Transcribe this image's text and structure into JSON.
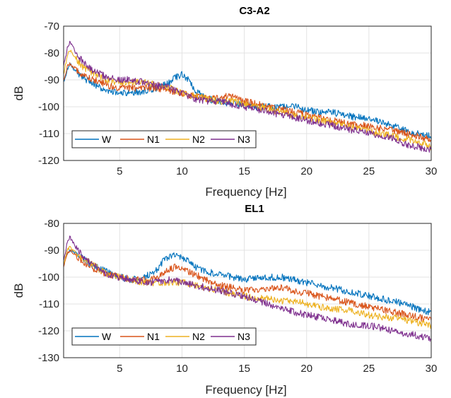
{
  "chart_data": [
    {
      "type": "line",
      "title": "C3-A2",
      "xlabel": "Frequency [Hz]",
      "ylabel": "dB",
      "xlim": [
        0.5,
        30
      ],
      "ylim": [
        -120,
        -70
      ],
      "xticks": [
        5,
        10,
        15,
        20,
        25,
        30
      ],
      "yticks": [
        -70,
        -80,
        -90,
        -100,
        -110,
        -120
      ],
      "grid": true,
      "legend": {
        "placement": "bottom-left",
        "orientation": "horizontal"
      },
      "series": [
        {
          "name": "W",
          "color": "#0072BD",
          "points": [
            [
              0.5,
              -91
            ],
            [
              0.8,
              -86
            ],
            [
              1,
              -84
            ],
            [
              1.5,
              -87
            ],
            [
              2,
              -89
            ],
            [
              3,
              -92
            ],
            [
              4,
              -94
            ],
            [
              5,
              -95
            ],
            [
              6,
              -95
            ],
            [
              7,
              -94
            ],
            [
              8,
              -93
            ],
            [
              8.5,
              -92
            ],
            [
              9,
              -91
            ],
            [
              9.5,
              -89
            ],
            [
              10,
              -88
            ],
            [
              10.5,
              -90
            ],
            [
              11,
              -94
            ],
            [
              12,
              -97
            ],
            [
              13,
              -98
            ],
            [
              14,
              -99
            ],
            [
              15,
              -99
            ],
            [
              16,
              -100
            ],
            [
              17,
              -100
            ],
            [
              18,
              -100
            ],
            [
              19,
              -100
            ],
            [
              20,
              -101
            ],
            [
              21,
              -102
            ],
            [
              22,
              -102
            ],
            [
              23,
              -103
            ],
            [
              24,
              -104
            ],
            [
              25,
              -104
            ],
            [
              26,
              -106
            ],
            [
              27,
              -107
            ],
            [
              28,
              -109
            ],
            [
              29,
              -110
            ],
            [
              30,
              -111
            ]
          ]
        },
        {
          "name": "N1",
          "color": "#D95319",
          "points": [
            [
              0.5,
              -90
            ],
            [
              0.8,
              -85
            ],
            [
              1,
              -84
            ],
            [
              1.5,
              -86
            ],
            [
              2,
              -88
            ],
            [
              3,
              -90
            ],
            [
              4,
              -92
            ],
            [
              5,
              -93
            ],
            [
              6,
              -93
            ],
            [
              7,
              -93
            ],
            [
              8,
              -93
            ],
            [
              9,
              -94
            ],
            [
              10,
              -95
            ],
            [
              11,
              -96
            ],
            [
              12,
              -97
            ],
            [
              13,
              -97
            ],
            [
              13.7,
              -96
            ],
            [
              14.5,
              -97
            ],
            [
              15,
              -98
            ],
            [
              16,
              -99
            ],
            [
              17,
              -100
            ],
            [
              18,
              -101
            ],
            [
              19,
              -102
            ],
            [
              20,
              -103
            ],
            [
              21,
              -104
            ],
            [
              22,
              -105
            ],
            [
              23,
              -106
            ],
            [
              24,
              -107
            ],
            [
              25,
              -107
            ],
            [
              26,
              -108
            ],
            [
              27,
              -109
            ],
            [
              28,
              -110
            ],
            [
              29,
              -111
            ],
            [
              30,
              -112
            ]
          ]
        },
        {
          "name": "N2",
          "color": "#EDB120",
          "points": [
            [
              0.5,
              -88
            ],
            [
              0.8,
              -81
            ],
            [
              1,
              -79
            ],
            [
              1.5,
              -82
            ],
            [
              2,
              -85
            ],
            [
              3,
              -88
            ],
            [
              4,
              -90
            ],
            [
              5,
              -91
            ],
            [
              6,
              -91
            ],
            [
              7,
              -91
            ],
            [
              8,
              -92
            ],
            [
              9,
              -93
            ],
            [
              10,
              -95
            ],
            [
              11,
              -96
            ],
            [
              12,
              -97
            ],
            [
              13,
              -98
            ],
            [
              14,
              -98
            ],
            [
              15,
              -99
            ],
            [
              16,
              -100
            ],
            [
              17,
              -101
            ],
            [
              18,
              -102
            ],
            [
              19,
              -103
            ],
            [
              20,
              -104
            ],
            [
              21,
              -105
            ],
            [
              22,
              -106
            ],
            [
              23,
              -107
            ],
            [
              24,
              -108
            ],
            [
              25,
              -109
            ],
            [
              26,
              -110
            ],
            [
              27,
              -111
            ],
            [
              28,
              -112
            ],
            [
              29,
              -113
            ],
            [
              30,
              -115
            ]
          ]
        },
        {
          "name": "N3",
          "color": "#7E2F8E",
          "points": [
            [
              0.5,
              -85
            ],
            [
              0.8,
              -78
            ],
            [
              1,
              -76
            ],
            [
              1.5,
              -80
            ],
            [
              2,
              -83
            ],
            [
              3,
              -87
            ],
            [
              4,
              -89
            ],
            [
              5,
              -90
            ],
            [
              6,
              -90
            ],
            [
              7,
              -91
            ],
            [
              8,
              -92
            ],
            [
              9,
              -93
            ],
            [
              10,
              -95
            ],
            [
              11,
              -97
            ],
            [
              12,
              -98
            ],
            [
              13,
              -98
            ],
            [
              14,
              -99
            ],
            [
              15,
              -100
            ],
            [
              16,
              -101
            ],
            [
              17,
              -102
            ],
            [
              18,
              -103
            ],
            [
              19,
              -104
            ],
            [
              20,
              -105
            ],
            [
              21,
              -106
            ],
            [
              22,
              -107
            ],
            [
              23,
              -108
            ],
            [
              24,
              -109
            ],
            [
              25,
              -110
            ],
            [
              26,
              -111
            ],
            [
              27,
              -112
            ],
            [
              28,
              -114
            ],
            [
              29,
              -115
            ],
            [
              30,
              -116
            ]
          ]
        }
      ]
    },
    {
      "type": "line",
      "title": "EL1",
      "xlabel": "Frequency [Hz]",
      "ylabel": "dB",
      "xlim": [
        0.5,
        30
      ],
      "ylim": [
        -130,
        -80
      ],
      "xticks": [
        5,
        10,
        15,
        20,
        25,
        30
      ],
      "yticks": [
        -80,
        -90,
        -100,
        -110,
        -120,
        -130
      ],
      "grid": true,
      "legend": {
        "placement": "bottom-left",
        "orientation": "horizontal"
      },
      "series": [
        {
          "name": "W",
          "color": "#0072BD",
          "points": [
            [
              0.5,
              -95
            ],
            [
              0.8,
              -91
            ],
            [
              1,
              -90
            ],
            [
              1.5,
              -91
            ],
            [
              2,
              -93
            ],
            [
              3,
              -96
            ],
            [
              4,
              -98
            ],
            [
              5,
              -100
            ],
            [
              6,
              -101
            ],
            [
              7,
              -100
            ],
            [
              8,
              -97
            ],
            [
              8.5,
              -94
            ],
            [
              9,
              -92
            ],
            [
              9.5,
              -92
            ],
            [
              10,
              -93
            ],
            [
              10.5,
              -94
            ],
            [
              11,
              -96
            ],
            [
              12,
              -98
            ],
            [
              13,
              -99
            ],
            [
              14,
              -100
            ],
            [
              15,
              -101
            ],
            [
              16,
              -100
            ],
            [
              17,
              -100
            ],
            [
              18,
              -100
            ],
            [
              19,
              -101
            ],
            [
              20,
              -102
            ],
            [
              21,
              -103
            ],
            [
              22,
              -104
            ],
            [
              23,
              -105
            ],
            [
              24,
              -106
            ],
            [
              25,
              -107
            ],
            [
              26,
              -108
            ],
            [
              27,
              -109
            ],
            [
              28,
              -110
            ],
            [
              29,
              -112
            ],
            [
              30,
              -113
            ]
          ]
        },
        {
          "name": "N1",
          "color": "#D95319",
          "points": [
            [
              0.5,
              -96
            ],
            [
              0.8,
              -91
            ],
            [
              1,
              -90
            ],
            [
              1.5,
              -92
            ],
            [
              2,
              -94
            ],
            [
              3,
              -97
            ],
            [
              4,
              -99
            ],
            [
              5,
              -100
            ],
            [
              6,
              -101
            ],
            [
              7,
              -101
            ],
            [
              8,
              -100
            ],
            [
              9,
              -97
            ],
            [
              9.5,
              -96
            ],
            [
              10,
              -97
            ],
            [
              11,
              -99
            ],
            [
              12,
              -101
            ],
            [
              13,
              -103
            ],
            [
              14,
              -104
            ],
            [
              15,
              -105
            ],
            [
              16,
              -105
            ],
            [
              17,
              -104
            ],
            [
              18,
              -104
            ],
            [
              19,
              -105
            ],
            [
              20,
              -106
            ],
            [
              21,
              -107
            ],
            [
              22,
              -108
            ],
            [
              23,
              -109
            ],
            [
              24,
              -110
            ],
            [
              25,
              -111
            ],
            [
              26,
              -112
            ],
            [
              27,
              -113
            ],
            [
              28,
              -114
            ],
            [
              29,
              -115
            ],
            [
              30,
              -116
            ]
          ]
        },
        {
          "name": "N2",
          "color": "#EDB120",
          "points": [
            [
              0.5,
              -95
            ],
            [
              0.8,
              -90
            ],
            [
              1,
              -89
            ],
            [
              1.5,
              -91
            ],
            [
              2,
              -93
            ],
            [
              3,
              -96
            ],
            [
              4,
              -99
            ],
            [
              5,
              -100
            ],
            [
              6,
              -101
            ],
            [
              7,
              -102
            ],
            [
              8,
              -102
            ],
            [
              9,
              -102
            ],
            [
              10,
              -102
            ],
            [
              11,
              -103
            ],
            [
              12,
              -104
            ],
            [
              13,
              -105
            ],
            [
              14,
              -106
            ],
            [
              15,
              -107
            ],
            [
              16,
              -108
            ],
            [
              17,
              -108
            ],
            [
              18,
              -109
            ],
            [
              19,
              -109
            ],
            [
              20,
              -110
            ],
            [
              21,
              -111
            ],
            [
              22,
              -112
            ],
            [
              23,
              -112
            ],
            [
              24,
              -113
            ],
            [
              25,
              -114
            ],
            [
              26,
              -115
            ],
            [
              27,
              -115
            ],
            [
              28,
              -116
            ],
            [
              29,
              -117
            ],
            [
              30,
              -118
            ]
          ]
        },
        {
          "name": "N3",
          "color": "#7E2F8E",
          "points": [
            [
              0.5,
              -94
            ],
            [
              0.8,
              -87
            ],
            [
              1,
              -85
            ],
            [
              1.5,
              -89
            ],
            [
              2,
              -92
            ],
            [
              3,
              -96
            ],
            [
              4,
              -99
            ],
            [
              5,
              -100
            ],
            [
              6,
              -101
            ],
            [
              7,
              -102
            ],
            [
              8,
              -102
            ],
            [
              9,
              -101
            ],
            [
              10,
              -102
            ],
            [
              11,
              -103
            ],
            [
              12,
              -104
            ],
            [
              13,
              -105
            ],
            [
              14,
              -106
            ],
            [
              15,
              -107
            ],
            [
              16,
              -109
            ],
            [
              17,
              -110
            ],
            [
              18,
              -112
            ],
            [
              19,
              -113
            ],
            [
              20,
              -114
            ],
            [
              21,
              -115
            ],
            [
              22,
              -116
            ],
            [
              23,
              -117
            ],
            [
              24,
              -118
            ],
            [
              25,
              -118
            ],
            [
              26,
              -119
            ],
            [
              27,
              -120
            ],
            [
              28,
              -121
            ],
            [
              29,
              -122
            ],
            [
              30,
              -123
            ]
          ]
        }
      ]
    }
  ]
}
